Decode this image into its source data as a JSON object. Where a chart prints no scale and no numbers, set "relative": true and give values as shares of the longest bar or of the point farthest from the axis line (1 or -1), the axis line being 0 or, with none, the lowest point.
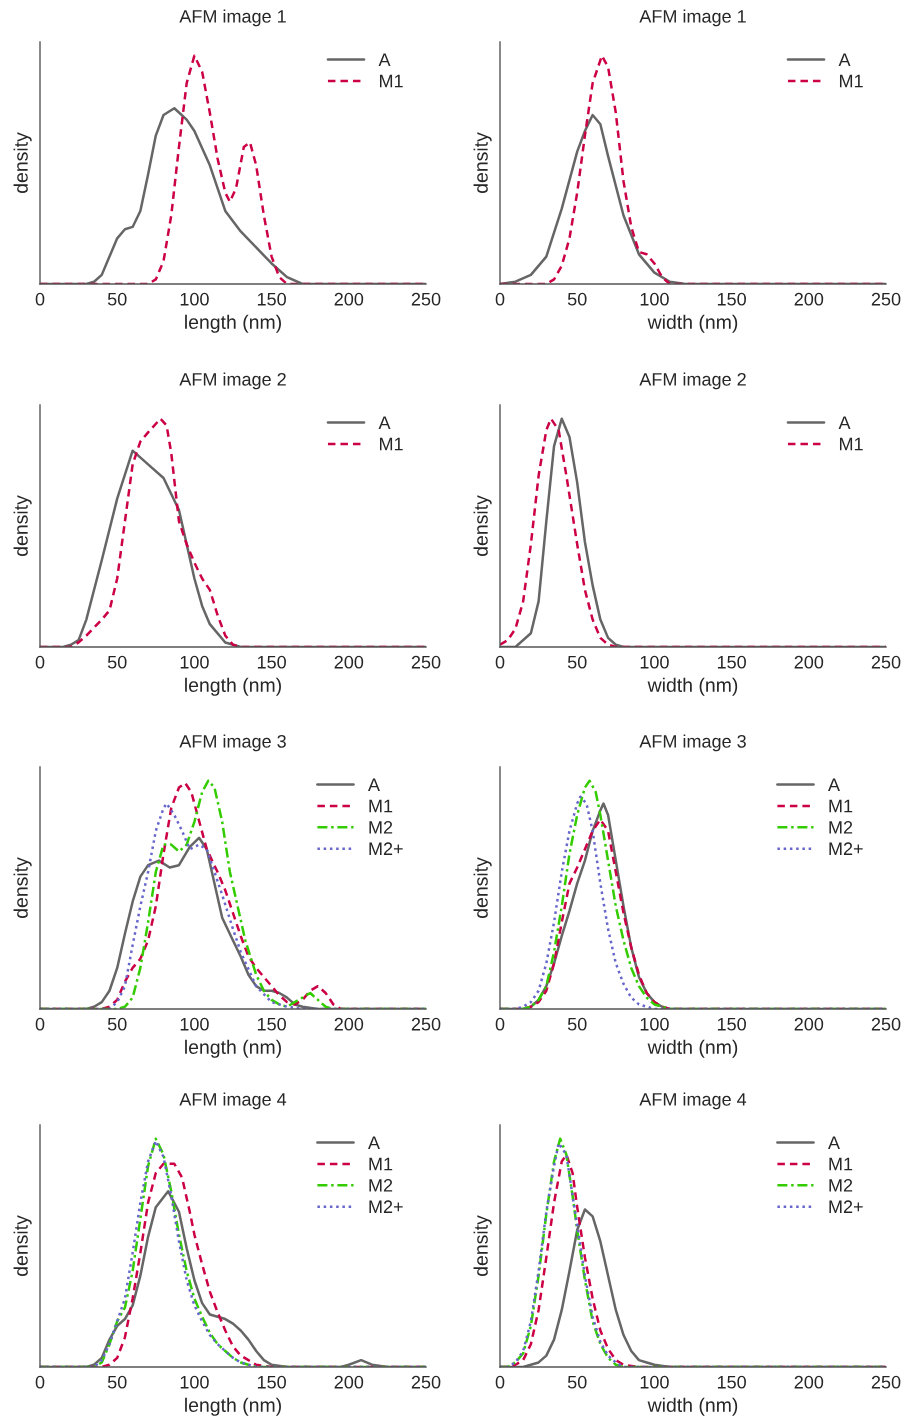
{
  "chart_data": [
    {
      "type": "line",
      "title": "AFM image 1",
      "xlabel": "length (nm)",
      "ylabel": "density",
      "xlim": [
        0,
        250
      ],
      "xticks": [
        0,
        50,
        100,
        150,
        200,
        250
      ],
      "relative": true,
      "tick_labels": "x",
      "legend": "top right",
      "series": [
        {
          "name": "A",
          "color": "#666666",
          "line_style": "solid",
          "x": [
            0,
            30,
            35,
            40,
            45,
            50,
            55,
            60,
            65,
            70,
            75,
            80,
            87,
            95,
            100,
            110,
            120,
            130,
            140,
            150,
            160,
            170,
            250
          ],
          "values": [
            0,
            0,
            0.01,
            0.04,
            0.12,
            0.2,
            0.24,
            0.25,
            0.32,
            0.48,
            0.65,
            0.74,
            0.77,
            0.72,
            0.67,
            0.52,
            0.32,
            0.23,
            0.16,
            0.09,
            0.03,
            0,
            0
          ]
        },
        {
          "name": "M1",
          "color": "#cc0044",
          "line_style": "dashed",
          "x": [
            0,
            70,
            75,
            80,
            85,
            90,
            95,
            100,
            105,
            110,
            115,
            120,
            123,
            127,
            132,
            136,
            140,
            145,
            150,
            155,
            160,
            250
          ],
          "values": [
            0,
            0,
            0.02,
            0.1,
            0.3,
            0.6,
            0.88,
            1.0,
            0.93,
            0.75,
            0.55,
            0.4,
            0.36,
            0.42,
            0.6,
            0.62,
            0.52,
            0.3,
            0.12,
            0.03,
            0,
            0
          ]
        }
      ]
    },
    {
      "type": "line",
      "title": "AFM image 1",
      "xlabel": "width (nm)",
      "ylabel": "density",
      "xlim": [
        0,
        250
      ],
      "xticks": [
        0,
        50,
        100,
        150,
        200,
        250
      ],
      "relative": true,
      "tick_labels": "x",
      "legend": "top right",
      "series": [
        {
          "name": "A",
          "color": "#666666",
          "line_style": "solid",
          "x": [
            0,
            10,
            20,
            30,
            40,
            50,
            55,
            60,
            65,
            70,
            80,
            90,
            100,
            110,
            120,
            250
          ],
          "values": [
            0,
            0.01,
            0.04,
            0.12,
            0.33,
            0.58,
            0.67,
            0.74,
            0.7,
            0.56,
            0.3,
            0.13,
            0.05,
            0.01,
            0,
            0
          ]
        },
        {
          "name": "M1",
          "color": "#cc0044",
          "line_style": "dashed",
          "x": [
            0,
            30,
            35,
            40,
            45,
            50,
            55,
            60,
            66,
            70,
            75,
            80,
            85,
            90,
            95,
            100,
            105,
            110,
            250
          ],
          "values": [
            0,
            0,
            0.02,
            0.08,
            0.2,
            0.4,
            0.65,
            0.88,
            1.0,
            0.95,
            0.75,
            0.45,
            0.25,
            0.14,
            0.13,
            0.09,
            0.03,
            0,
            0
          ]
        }
      ]
    },
    {
      "type": "line",
      "title": "AFM image 2",
      "xlabel": "length (nm)",
      "ylabel": "density",
      "xlim": [
        0,
        250
      ],
      "xticks": [
        0,
        50,
        100,
        150,
        200,
        250
      ],
      "relative": true,
      "tick_labels": "x",
      "legend": "top right",
      "series": [
        {
          "name": "A",
          "color": "#666666",
          "line_style": "solid",
          "x": [
            0,
            15,
            20,
            25,
            30,
            40,
            50,
            60,
            70,
            80,
            90,
            100,
            105,
            110,
            120,
            130,
            250
          ],
          "values": [
            0,
            0,
            0.01,
            0.03,
            0.12,
            0.38,
            0.65,
            0.86,
            0.8,
            0.74,
            0.6,
            0.3,
            0.18,
            0.1,
            0.02,
            0,
            0
          ]
        },
        {
          "name": "M1",
          "color": "#cc0044",
          "line_style": "dashed",
          "x": [
            0,
            20,
            25,
            30,
            40,
            45,
            50,
            55,
            60,
            65,
            70,
            78,
            82,
            85,
            90,
            95,
            100,
            105,
            110,
            115,
            120,
            125,
            130,
            250
          ],
          "values": [
            0,
            0,
            0.02,
            0.05,
            0.12,
            0.16,
            0.3,
            0.55,
            0.8,
            0.9,
            0.94,
            1.0,
            0.97,
            0.85,
            0.55,
            0.45,
            0.37,
            0.3,
            0.25,
            0.14,
            0.05,
            0.01,
            0,
            0
          ]
        }
      ]
    },
    {
      "type": "line",
      "title": "AFM image 2",
      "xlabel": "width (nm)",
      "ylabel": "density",
      "xlim": [
        0,
        250
      ],
      "xticks": [
        0,
        50,
        100,
        150,
        200,
        250
      ],
      "relative": true,
      "tick_labels": "x",
      "legend": "top right",
      "series": [
        {
          "name": "A",
          "color": "#666666",
          "line_style": "solid",
          "x": [
            0,
            10,
            20,
            25,
            30,
            35,
            40,
            45,
            50,
            55,
            60,
            65,
            70,
            75,
            80,
            250
          ],
          "values": [
            0,
            0,
            0.06,
            0.2,
            0.55,
            0.88,
            1.0,
            0.92,
            0.72,
            0.46,
            0.27,
            0.12,
            0.04,
            0.01,
            0,
            0
          ]
        },
        {
          "name": "M1",
          "color": "#cc0044",
          "line_style": "dashed",
          "x": [
            0,
            5,
            10,
            15,
            20,
            25,
            30,
            33,
            38,
            43,
            50,
            55,
            60,
            65,
            70,
            75,
            250
          ],
          "values": [
            0.01,
            0.03,
            0.08,
            0.2,
            0.45,
            0.75,
            0.95,
            1.0,
            0.95,
            0.75,
            0.45,
            0.25,
            0.12,
            0.04,
            0.01,
            0,
            0
          ]
        }
      ]
    },
    {
      "type": "line",
      "title": "AFM image 3",
      "xlabel": "length (nm)",
      "ylabel": "density",
      "xlim": [
        0,
        250
      ],
      "xticks": [
        0,
        50,
        100,
        150,
        200,
        250
      ],
      "relative": true,
      "tick_labels": "x",
      "legend": "top right",
      "series": [
        {
          "name": "A",
          "color": "#666666",
          "line_style": "solid",
          "x": [
            0,
            30,
            35,
            40,
            45,
            50,
            55,
            60,
            65,
            70,
            77,
            84,
            90,
            97,
            103,
            108,
            113,
            118,
            125,
            130,
            135,
            140,
            145,
            150,
            155,
            160,
            165,
            170,
            180,
            250
          ],
          "values": [
            0,
            0,
            0.01,
            0.03,
            0.08,
            0.18,
            0.33,
            0.47,
            0.58,
            0.63,
            0.65,
            0.62,
            0.63,
            0.71,
            0.75,
            0.7,
            0.55,
            0.4,
            0.3,
            0.23,
            0.15,
            0.1,
            0.08,
            0.08,
            0.07,
            0.05,
            0.02,
            0.01,
            0,
            0
          ]
        },
        {
          "name": "M1",
          "color": "#cc0044",
          "line_style": "dashed",
          "x": [
            0,
            40,
            45,
            50,
            55,
            60,
            65,
            70,
            75,
            80,
            85,
            90,
            94,
            98,
            102,
            108,
            115,
            120,
            125,
            130,
            135,
            140,
            145,
            150,
            155,
            160,
            165,
            170,
            175,
            180,
            185,
            190,
            195,
            250
          ],
          "values": [
            0,
            0,
            0.01,
            0.04,
            0.12,
            0.18,
            0.22,
            0.3,
            0.45,
            0.68,
            0.88,
            0.97,
            0.99,
            0.95,
            0.85,
            0.7,
            0.6,
            0.52,
            0.42,
            0.32,
            0.23,
            0.18,
            0.14,
            0.1,
            0.06,
            0.03,
            0.02,
            0.04,
            0.08,
            0.1,
            0.07,
            0.02,
            0,
            0
          ]
        },
        {
          "name": "M2",
          "color": "#33cc00",
          "line_style": "dashdot",
          "x": [
            0,
            50,
            55,
            60,
            65,
            70,
            75,
            80,
            85,
            90,
            95,
            100,
            105,
            109,
            113,
            118,
            123,
            128,
            133,
            140,
            145,
            150,
            155,
            160,
            170,
            175,
            180,
            185,
            190,
            250
          ],
          "values": [
            0,
            0,
            0.01,
            0.05,
            0.18,
            0.38,
            0.6,
            0.72,
            0.72,
            0.69,
            0.72,
            0.82,
            0.95,
            1.0,
            0.97,
            0.82,
            0.6,
            0.45,
            0.3,
            0.15,
            0.08,
            0.04,
            0.02,
            0.01,
            0.05,
            0.07,
            0.04,
            0.01,
            0,
            0
          ]
        },
        {
          "name": "M2+",
          "color": "#6666cc",
          "line_style": "dotted",
          "x": [
            0,
            45,
            50,
            55,
            60,
            65,
            70,
            75,
            80,
            82,
            87,
            92,
            97,
            103,
            108,
            113,
            118,
            125,
            130,
            140,
            150,
            160,
            170,
            250
          ],
          "values": [
            0,
            0,
            0.03,
            0.1,
            0.28,
            0.45,
            0.6,
            0.78,
            0.88,
            0.9,
            0.85,
            0.78,
            0.7,
            0.72,
            0.7,
            0.6,
            0.5,
            0.35,
            0.25,
            0.1,
            0.03,
            0.01,
            0,
            0
          ]
        }
      ]
    },
    {
      "type": "line",
      "title": "AFM image 3",
      "xlabel": "width (nm)",
      "ylabel": "density",
      "xlim": [
        0,
        250
      ],
      "xticks": [
        0,
        50,
        100,
        150,
        200,
        250
      ],
      "relative": true,
      "tick_labels": "x",
      "legend": "top right",
      "series": [
        {
          "name": "A",
          "color": "#666666",
          "line_style": "solid",
          "x": [
            0,
            15,
            20,
            25,
            30,
            35,
            40,
            45,
            50,
            55,
            60,
            65,
            67,
            70,
            75,
            80,
            85,
            90,
            95,
            100,
            105,
            110,
            250
          ],
          "values": [
            0,
            0,
            0.01,
            0.04,
            0.1,
            0.2,
            0.32,
            0.43,
            0.55,
            0.65,
            0.78,
            0.87,
            0.9,
            0.85,
            0.65,
            0.45,
            0.27,
            0.14,
            0.07,
            0.03,
            0.01,
            0,
            0
          ]
        },
        {
          "name": "M1",
          "color": "#cc0044",
          "line_style": "dashed",
          "x": [
            0,
            15,
            20,
            25,
            30,
            35,
            40,
            45,
            50,
            55,
            60,
            65,
            70,
            75,
            80,
            85,
            90,
            95,
            100,
            105,
            110,
            250
          ],
          "values": [
            0,
            0,
            0.01,
            0.03,
            0.08,
            0.2,
            0.38,
            0.55,
            0.62,
            0.7,
            0.78,
            0.83,
            0.78,
            0.6,
            0.42,
            0.27,
            0.15,
            0.07,
            0.03,
            0.01,
            0,
            0
          ]
        },
        {
          "name": "M2",
          "color": "#33cc00",
          "line_style": "dashdot",
          "x": [
            0,
            15,
            20,
            25,
            30,
            35,
            40,
            45,
            50,
            55,
            58,
            62,
            65,
            70,
            75,
            80,
            85,
            90,
            95,
            100,
            105,
            110,
            250
          ],
          "values": [
            0,
            0,
            0.01,
            0.04,
            0.1,
            0.25,
            0.45,
            0.68,
            0.85,
            0.97,
            1.0,
            0.95,
            0.85,
            0.65,
            0.45,
            0.3,
            0.18,
            0.1,
            0.05,
            0.02,
            0.01,
            0,
            0
          ]
        },
        {
          "name": "M2+",
          "color": "#6666cc",
          "line_style": "dotted",
          "x": [
            0,
            10,
            15,
            20,
            25,
            30,
            35,
            40,
            45,
            50,
            52,
            56,
            60,
            65,
            70,
            75,
            80,
            85,
            90,
            95,
            100,
            250
          ],
          "values": [
            0,
            0,
            0.01,
            0.03,
            0.08,
            0.2,
            0.38,
            0.6,
            0.78,
            0.9,
            0.93,
            0.9,
            0.78,
            0.55,
            0.35,
            0.2,
            0.11,
            0.05,
            0.02,
            0.01,
            0,
            0
          ]
        }
      ]
    },
    {
      "type": "line",
      "title": "AFM image 4",
      "xlabel": "length (nm)",
      "ylabel": "density",
      "xlim": [
        0,
        250
      ],
      "xticks": [
        0,
        50,
        100,
        150,
        200,
        250
      ],
      "relative": true,
      "tick_labels": "x",
      "legend": "top right",
      "series": [
        {
          "name": "A",
          "color": "#666666",
          "line_style": "solid",
          "x": [
            0,
            30,
            35,
            40,
            45,
            50,
            55,
            60,
            65,
            70,
            75,
            83,
            90,
            95,
            100,
            105,
            110,
            115,
            120,
            125,
            130,
            135,
            140,
            145,
            150,
            160,
            195,
            200,
            208,
            215,
            225,
            250
          ],
          "values": [
            0,
            0,
            0.01,
            0.04,
            0.12,
            0.18,
            0.21,
            0.27,
            0.4,
            0.57,
            0.7,
            0.77,
            0.68,
            0.52,
            0.38,
            0.28,
            0.23,
            0.22,
            0.21,
            0.19,
            0.16,
            0.12,
            0.07,
            0.03,
            0.01,
            0,
            0,
            0.01,
            0.03,
            0.01,
            0,
            0
          ]
        },
        {
          "name": "M1",
          "color": "#cc0044",
          "line_style": "dashed",
          "x": [
            0,
            40,
            45,
            50,
            55,
            60,
            65,
            70,
            75,
            80,
            87,
            92,
            97,
            100,
            105,
            110,
            115,
            120,
            125,
            130,
            135,
            140,
            150,
            250
          ],
          "values": [
            0,
            0,
            0.01,
            0.04,
            0.13,
            0.3,
            0.5,
            0.72,
            0.85,
            0.89,
            0.89,
            0.83,
            0.68,
            0.58,
            0.45,
            0.33,
            0.24,
            0.16,
            0.09,
            0.05,
            0.03,
            0.01,
            0,
            0
          ]
        },
        {
          "name": "M2",
          "color": "#33cc00",
          "line_style": "dashdot",
          "x": [
            0,
            35,
            40,
            45,
            50,
            55,
            60,
            65,
            70,
            75,
            80,
            85,
            90,
            95,
            100,
            105,
            110,
            115,
            120,
            125,
            130,
            135,
            140,
            250
          ],
          "values": [
            0,
            0,
            0.02,
            0.1,
            0.2,
            0.26,
            0.42,
            0.65,
            0.88,
            1.0,
            0.93,
            0.77,
            0.58,
            0.42,
            0.3,
            0.22,
            0.15,
            0.1,
            0.07,
            0.04,
            0.02,
            0.01,
            0,
            0
          ]
        },
        {
          "name": "M2+",
          "color": "#6666cc",
          "line_style": "dotted",
          "x": [
            0,
            35,
            40,
            45,
            50,
            55,
            60,
            65,
            70,
            75,
            80,
            85,
            90,
            95,
            100,
            105,
            110,
            115,
            120,
            125,
            130,
            135,
            140,
            250
          ],
          "values": [
            0,
            0,
            0.03,
            0.1,
            0.2,
            0.3,
            0.5,
            0.72,
            0.9,
            0.99,
            0.92,
            0.75,
            0.55,
            0.38,
            0.27,
            0.2,
            0.14,
            0.1,
            0.07,
            0.04,
            0.02,
            0.01,
            0,
            0
          ]
        }
      ]
    },
    {
      "type": "line",
      "title": "AFM image 4",
      "xlabel": "width (nm)",
      "ylabel": "density",
      "xlim": [
        0,
        250
      ],
      "xticks": [
        0,
        50,
        100,
        150,
        200,
        250
      ],
      "relative": true,
      "tick_labels": "x",
      "legend": "top right",
      "series": [
        {
          "name": "A",
          "color": "#666666",
          "line_style": "solid",
          "x": [
            0,
            15,
            20,
            25,
            30,
            35,
            40,
            45,
            50,
            55,
            60,
            65,
            70,
            75,
            80,
            85,
            90,
            95,
            100,
            110,
            250
          ],
          "values": [
            0,
            0,
            0.01,
            0.02,
            0.05,
            0.12,
            0.25,
            0.42,
            0.6,
            0.69,
            0.66,
            0.55,
            0.4,
            0.25,
            0.14,
            0.07,
            0.03,
            0.02,
            0.01,
            0,
            0
          ]
        },
        {
          "name": "M1",
          "color": "#cc0044",
          "line_style": "dashed",
          "x": [
            0,
            5,
            10,
            15,
            20,
            25,
            30,
            35,
            40,
            43,
            47,
            50,
            55,
            60,
            65,
            70,
            75,
            80,
            90,
            250
          ],
          "values": [
            0,
            0,
            0.01,
            0.03,
            0.1,
            0.25,
            0.48,
            0.72,
            0.9,
            0.93,
            0.85,
            0.7,
            0.48,
            0.3,
            0.16,
            0.08,
            0.03,
            0.01,
            0,
            0
          ]
        },
        {
          "name": "M2",
          "color": "#33cc00",
          "line_style": "dashdot",
          "x": [
            0,
            5,
            10,
            15,
            20,
            25,
            30,
            35,
            39,
            43,
            47,
            50,
            55,
            60,
            65,
            70,
            75,
            80,
            250
          ],
          "values": [
            0,
            0,
            0.02,
            0.06,
            0.18,
            0.4,
            0.67,
            0.9,
            1.0,
            0.93,
            0.75,
            0.6,
            0.38,
            0.2,
            0.1,
            0.04,
            0.01,
            0,
            0
          ]
        },
        {
          "name": "M2+",
          "color": "#6666cc",
          "line_style": "dotted",
          "x": [
            0,
            5,
            10,
            15,
            20,
            25,
            30,
            35,
            38,
            43,
            47,
            50,
            55,
            60,
            65,
            70,
            75,
            80,
            250
          ],
          "values": [
            0,
            0,
            0.02,
            0.07,
            0.2,
            0.42,
            0.68,
            0.88,
            0.98,
            0.93,
            0.75,
            0.62,
            0.4,
            0.22,
            0.11,
            0.05,
            0.02,
            0,
            0
          ]
        }
      ]
    }
  ]
}
